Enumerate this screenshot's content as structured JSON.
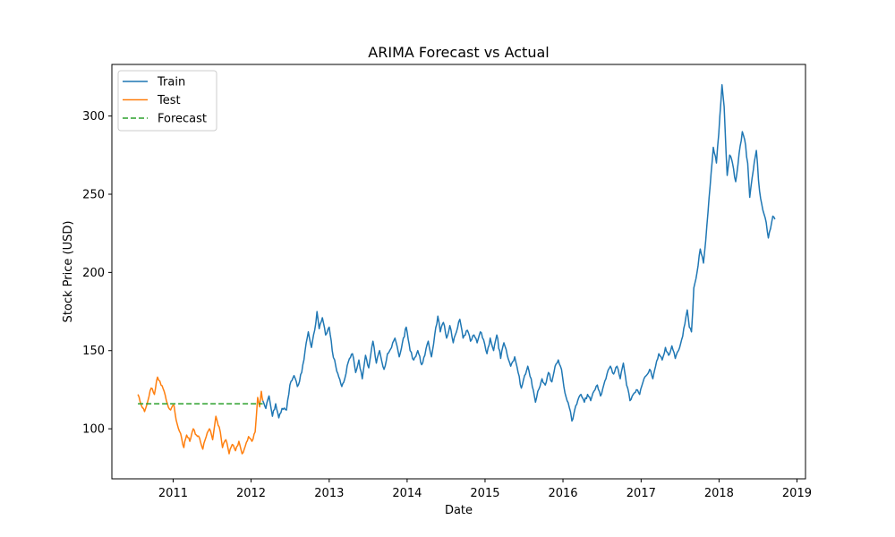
{
  "chart_data": {
    "type": "line",
    "title": "ARIMA Forecast vs Actual",
    "xlabel": "Date",
    "ylabel": "Stock Price (USD)",
    "xlim": [
      "2010-03-20",
      "2019-02-10"
    ],
    "ylim": [
      68,
      333
    ],
    "x_ticks": [
      "2011",
      "2012",
      "2013",
      "2014",
      "2015",
      "2016",
      "2017",
      "2018",
      "2019"
    ],
    "y_ticks": [
      100,
      150,
      200,
      250,
      300
    ],
    "grid": false,
    "legend_position": "top-left",
    "series": [
      {
        "name": "Train",
        "color": "#1f77b4",
        "style": "solid",
        "points": [
          [
            "2012-02-25",
            118
          ],
          [
            "2012-03-10",
            113
          ],
          [
            "2012-03-25",
            121
          ],
          [
            "2012-04-10",
            108
          ],
          [
            "2012-04-25",
            116
          ],
          [
            "2012-05-10",
            107
          ],
          [
            "2012-05-25",
            113
          ],
          [
            "2012-06-15",
            112
          ],
          [
            "2012-07-01",
            128
          ],
          [
            "2012-07-20",
            134
          ],
          [
            "2012-08-05",
            127
          ],
          [
            "2012-08-25",
            136
          ],
          [
            "2012-09-10",
            150
          ],
          [
            "2012-09-25",
            162
          ],
          [
            "2012-10-10",
            152
          ],
          [
            "2012-10-25",
            163
          ],
          [
            "2012-11-05",
            175
          ],
          [
            "2012-11-15",
            164
          ],
          [
            "2012-11-30",
            171
          ],
          [
            "2012-12-15",
            160
          ],
          [
            "2013-01-01",
            165
          ],
          [
            "2013-01-15",
            150
          ],
          [
            "2013-02-01",
            140
          ],
          [
            "2013-02-15",
            133
          ],
          [
            "2013-03-01",
            127
          ],
          [
            "2013-03-15",
            132
          ],
          [
            "2013-04-01",
            143
          ],
          [
            "2013-04-20",
            148
          ],
          [
            "2013-05-05",
            136
          ],
          [
            "2013-05-20",
            144
          ],
          [
            "2013-06-05",
            132
          ],
          [
            "2013-06-20",
            147
          ],
          [
            "2013-07-05",
            139
          ],
          [
            "2013-07-25",
            156
          ],
          [
            "2013-08-10",
            142
          ],
          [
            "2013-08-25",
            150
          ],
          [
            "2013-09-15",
            138
          ],
          [
            "2013-10-01",
            148
          ],
          [
            "2013-10-20",
            152
          ],
          [
            "2013-11-05",
            158
          ],
          [
            "2013-11-25",
            146
          ],
          [
            "2013-12-10",
            155
          ],
          [
            "2013-12-28",
            165
          ],
          [
            "2014-01-15",
            150
          ],
          [
            "2014-02-01",
            144
          ],
          [
            "2014-02-20",
            150
          ],
          [
            "2014-03-10",
            141
          ],
          [
            "2014-03-25",
            147
          ],
          [
            "2014-04-10",
            156
          ],
          [
            "2014-04-25",
            146
          ],
          [
            "2014-05-10",
            160
          ],
          [
            "2014-05-25",
            172
          ],
          [
            "2014-06-05",
            162
          ],
          [
            "2014-06-20",
            168
          ],
          [
            "2014-07-05",
            158
          ],
          [
            "2014-07-20",
            166
          ],
          [
            "2014-08-05",
            155
          ],
          [
            "2014-08-20",
            162
          ],
          [
            "2014-09-05",
            170
          ],
          [
            "2014-09-20",
            158
          ],
          [
            "2014-10-10",
            163
          ],
          [
            "2014-10-25",
            156
          ],
          [
            "2014-11-10",
            160
          ],
          [
            "2014-11-25",
            155
          ],
          [
            "2014-12-10",
            162
          ],
          [
            "2014-12-25",
            157
          ],
          [
            "2015-01-10",
            148
          ],
          [
            "2015-01-25",
            158
          ],
          [
            "2015-02-10",
            150
          ],
          [
            "2015-02-25",
            160
          ],
          [
            "2015-03-15",
            145
          ],
          [
            "2015-03-30",
            155
          ],
          [
            "2015-04-15",
            147
          ],
          [
            "2015-05-01",
            140
          ],
          [
            "2015-05-20",
            146
          ],
          [
            "2015-06-05",
            136
          ],
          [
            "2015-06-20",
            126
          ],
          [
            "2015-07-05",
            134
          ],
          [
            "2015-07-20",
            140
          ],
          [
            "2015-08-05",
            132
          ],
          [
            "2015-08-25",
            117
          ],
          [
            "2015-09-05",
            124
          ],
          [
            "2015-09-25",
            132
          ],
          [
            "2015-10-10",
            128
          ],
          [
            "2015-10-25",
            136
          ],
          [
            "2015-11-10",
            130
          ],
          [
            "2015-11-25",
            140
          ],
          [
            "2015-12-10",
            144
          ],
          [
            "2015-12-25",
            138
          ],
          [
            "2016-01-05",
            127
          ],
          [
            "2016-01-20",
            118
          ],
          [
            "2016-02-05",
            111
          ],
          [
            "2016-02-12",
            105
          ],
          [
            "2016-02-25",
            112
          ],
          [
            "2016-03-10",
            118
          ],
          [
            "2016-03-25",
            122
          ],
          [
            "2016-04-10",
            117
          ],
          [
            "2016-04-25",
            122
          ],
          [
            "2016-05-10",
            118
          ],
          [
            "2016-05-25",
            124
          ],
          [
            "2016-06-10",
            128
          ],
          [
            "2016-06-25",
            121
          ],
          [
            "2016-07-10",
            128
          ],
          [
            "2016-07-25",
            135
          ],
          [
            "2016-08-10",
            140
          ],
          [
            "2016-08-25",
            135
          ],
          [
            "2016-09-10",
            140
          ],
          [
            "2016-09-25",
            132
          ],
          [
            "2016-10-10",
            142
          ],
          [
            "2016-10-25",
            128
          ],
          [
            "2016-11-10",
            118
          ],
          [
            "2016-11-25",
            122
          ],
          [
            "2016-12-10",
            125
          ],
          [
            "2016-12-25",
            122
          ],
          [
            "2017-01-10",
            130
          ],
          [
            "2017-01-25",
            134
          ],
          [
            "2017-02-10",
            138
          ],
          [
            "2017-02-25",
            132
          ],
          [
            "2017-03-10",
            140
          ],
          [
            "2017-03-25",
            148
          ],
          [
            "2017-04-10",
            144
          ],
          [
            "2017-04-25",
            152
          ],
          [
            "2017-05-10",
            147
          ],
          [
            "2017-05-25",
            153
          ],
          [
            "2017-06-10",
            145
          ],
          [
            "2017-06-25",
            150
          ],
          [
            "2017-07-10",
            157
          ],
          [
            "2017-07-25",
            167
          ],
          [
            "2017-08-05",
            176
          ],
          [
            "2017-08-15",
            165
          ],
          [
            "2017-08-25",
            162
          ],
          [
            "2017-09-05",
            190
          ],
          [
            "2017-09-20",
            200
          ],
          [
            "2017-10-05",
            215
          ],
          [
            "2017-10-20",
            206
          ],
          [
            "2017-11-05",
            230
          ],
          [
            "2017-11-20",
            255
          ],
          [
            "2017-12-05",
            280
          ],
          [
            "2017-12-20",
            270
          ],
          [
            "2018-01-05",
            300
          ],
          [
            "2018-01-15",
            320
          ],
          [
            "2018-01-25",
            306
          ],
          [
            "2018-02-08",
            262
          ],
          [
            "2018-02-20",
            275
          ],
          [
            "2018-03-05",
            270
          ],
          [
            "2018-03-20",
            258
          ],
          [
            "2018-04-05",
            276
          ],
          [
            "2018-04-20",
            290
          ],
          [
            "2018-05-01",
            285
          ],
          [
            "2018-05-15",
            270
          ],
          [
            "2018-05-25",
            248
          ],
          [
            "2018-06-10",
            265
          ],
          [
            "2018-06-25",
            278
          ],
          [
            "2018-07-10",
            252
          ],
          [
            "2018-07-25",
            240
          ],
          [
            "2018-08-05",
            235
          ],
          [
            "2018-08-20",
            222
          ],
          [
            "2018-08-30",
            228
          ],
          [
            "2018-09-10",
            236
          ],
          [
            "2018-09-20",
            234
          ]
        ]
      },
      {
        "name": "Test",
        "color": "#ff7f0e",
        "style": "solid",
        "points": [
          [
            "2010-07-20",
            122
          ],
          [
            "2010-08-05",
            115
          ],
          [
            "2010-08-20",
            111
          ],
          [
            "2010-09-05",
            118
          ],
          [
            "2010-09-20",
            126
          ],
          [
            "2010-10-05",
            122
          ],
          [
            "2010-10-20",
            133
          ],
          [
            "2010-11-05",
            128
          ],
          [
            "2010-11-20",
            124
          ],
          [
            "2010-12-05",
            116
          ],
          [
            "2010-12-20",
            112
          ],
          [
            "2011-01-05",
            115
          ],
          [
            "2011-01-20",
            103
          ],
          [
            "2011-02-05",
            97
          ],
          [
            "2011-02-20",
            88
          ],
          [
            "2011-03-05",
            96
          ],
          [
            "2011-03-20",
            92
          ],
          [
            "2011-04-05",
            100
          ],
          [
            "2011-04-20",
            96
          ],
          [
            "2011-05-05",
            94
          ],
          [
            "2011-05-20",
            87
          ],
          [
            "2011-06-05",
            95
          ],
          [
            "2011-06-20",
            100
          ],
          [
            "2011-07-05",
            93
          ],
          [
            "2011-07-20",
            108
          ],
          [
            "2011-08-05",
            101
          ],
          [
            "2011-08-20",
            88
          ],
          [
            "2011-09-05",
            93
          ],
          [
            "2011-09-20",
            84
          ],
          [
            "2011-10-05",
            90
          ],
          [
            "2011-10-20",
            86
          ],
          [
            "2011-11-05",
            92
          ],
          [
            "2011-11-20",
            84
          ],
          [
            "2011-12-05",
            89
          ],
          [
            "2011-12-20",
            95
          ],
          [
            "2012-01-05",
            92
          ],
          [
            "2012-01-20",
            98
          ],
          [
            "2012-02-01",
            120
          ],
          [
            "2012-02-10",
            114
          ],
          [
            "2012-02-18",
            124
          ],
          [
            "2012-02-25",
            118
          ]
        ]
      },
      {
        "name": "Forecast",
        "color": "#2ca02c",
        "style": "dashed",
        "points": [
          [
            "2010-07-20",
            116
          ],
          [
            "2012-02-25",
            116
          ]
        ]
      }
    ]
  }
}
